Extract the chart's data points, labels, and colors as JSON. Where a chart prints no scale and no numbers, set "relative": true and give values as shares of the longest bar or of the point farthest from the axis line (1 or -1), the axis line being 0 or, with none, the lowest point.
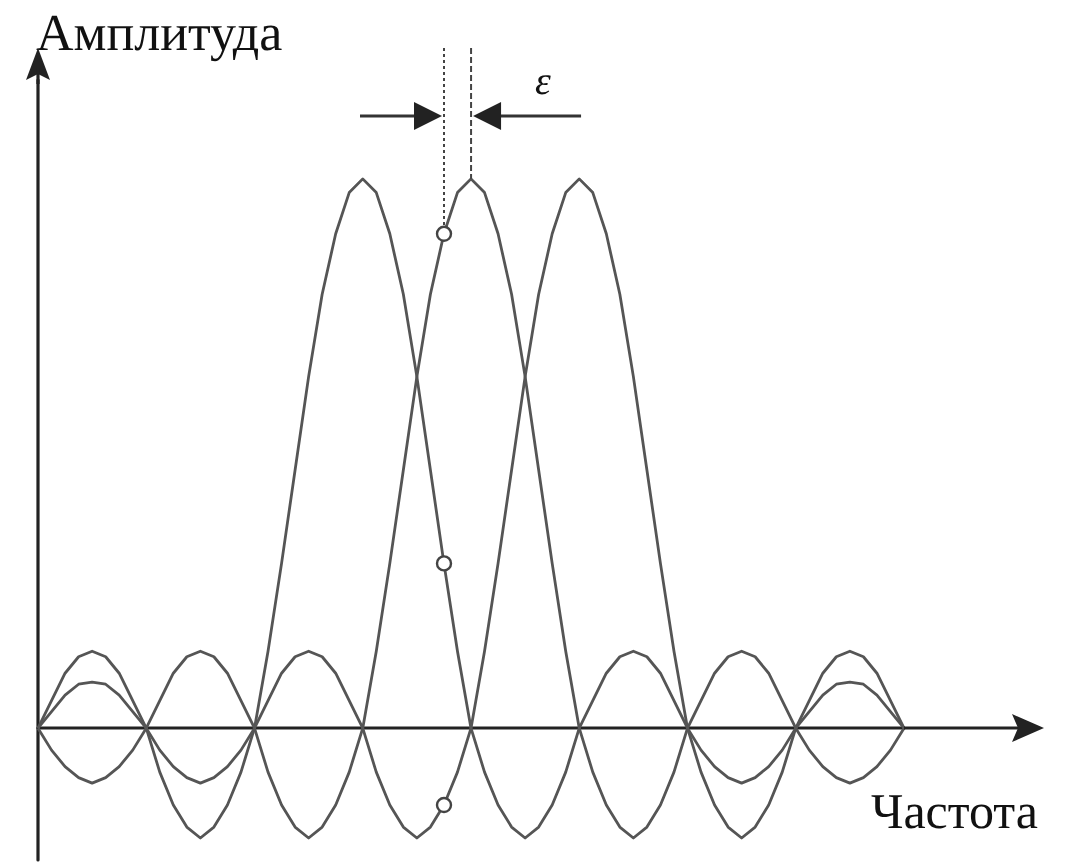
{
  "chart_data": {
    "type": "line",
    "relative": true,
    "xlabel": "Частота",
    "ylabel": "Амплитуда",
    "annotations": [
      "ε"
    ],
    "categories": [
      null,
      null,
      null,
      null,
      null,
      null,
      null,
      null,
      null,
      null,
      null,
      null,
      null,
      null,
      null,
      null,
      null,
      null,
      null,
      null,
      null,
      null,
      null,
      null,
      null,
      null,
      null,
      null,
      null,
      null,
      null,
      null,
      null,
      null,
      null,
      null,
      null,
      null,
      null,
      null,
      null,
      null,
      null,
      null,
      null,
      null,
      null,
      null,
      null,
      null,
      null,
      null,
      null,
      null,
      null,
      null,
      null,
      null,
      null,
      null,
      null,
      null,
      null,
      null,
      null
    ],
    "series": [
      {
        "color": "#555555",
        "values": [
          0,
          0.05,
          0.1,
          0.13,
          0.14,
          0.13,
          0.1,
          0.05,
          0,
          -0.08,
          -0.14,
          -0.18,
          -0.2,
          -0.18,
          -0.14,
          -0.08,
          0,
          0.14,
          0.3,
          0.47,
          0.64,
          0.79,
          0.9,
          0.975,
          1,
          0.975,
          0.9,
          0.79,
          0.64,
          0.47,
          0.3,
          0.14,
          0,
          -0.08,
          -0.14,
          -0.18,
          -0.2,
          -0.18,
          -0.14,
          -0.08,
          0,
          0.05,
          0.1,
          0.13,
          0.14,
          0.13,
          0.1,
          0.05,
          0,
          -0.04,
          -0.07,
          -0.09,
          -0.1,
          -0.09,
          -0.07,
          -0.04,
          0,
          0.03,
          0.06,
          0.08,
          0.084,
          0.08,
          0.06,
          0.03,
          0
        ]
      },
      {
        "color": "#555555",
        "values": [
          0,
          -0.04,
          -0.07,
          -0.09,
          -0.1,
          -0.09,
          -0.07,
          -0.04,
          0,
          0.05,
          0.1,
          0.13,
          0.14,
          0.13,
          0.1,
          0.05,
          0,
          -0.08,
          -0.14,
          -0.18,
          -0.2,
          -0.18,
          -0.14,
          -0.08,
          0,
          0.14,
          0.3,
          0.47,
          0.64,
          0.79,
          0.9,
          0.975,
          1,
          0.975,
          0.9,
          0.79,
          0.64,
          0.47,
          0.3,
          0.14,
          0,
          -0.08,
          -0.14,
          -0.18,
          -0.2,
          -0.18,
          -0.14,
          -0.08,
          0,
          0.05,
          0.1,
          0.13,
          0.14,
          0.13,
          0.1,
          0.05,
          0,
          -0.04,
          -0.07,
          -0.09,
          -0.1,
          -0.09,
          -0.07,
          -0.04,
          0
        ]
      },
      {
        "color": "#555555",
        "values": [
          0,
          0.03,
          0.06,
          0.08,
          0.084,
          0.08,
          0.06,
          0.03,
          0,
          -0.04,
          -0.07,
          -0.09,
          -0.1,
          -0.09,
          -0.07,
          -0.04,
          0,
          0.05,
          0.1,
          0.13,
          0.14,
          0.13,
          0.1,
          0.05,
          0,
          -0.08,
          -0.14,
          -0.18,
          -0.2,
          -0.18,
          -0.14,
          -0.08,
          0,
          0.14,
          0.3,
          0.47,
          0.64,
          0.79,
          0.9,
          0.975,
          1,
          0.975,
          0.9,
          0.79,
          0.64,
          0.47,
          0.3,
          0.14,
          0,
          -0.08,
          -0.14,
          -0.18,
          -0.2,
          -0.18,
          -0.14,
          -0.08,
          0,
          0.05,
          0.1,
          0.13,
          0.14,
          0.13,
          0.1,
          0.05,
          0
        ]
      }
    ]
  }
}
